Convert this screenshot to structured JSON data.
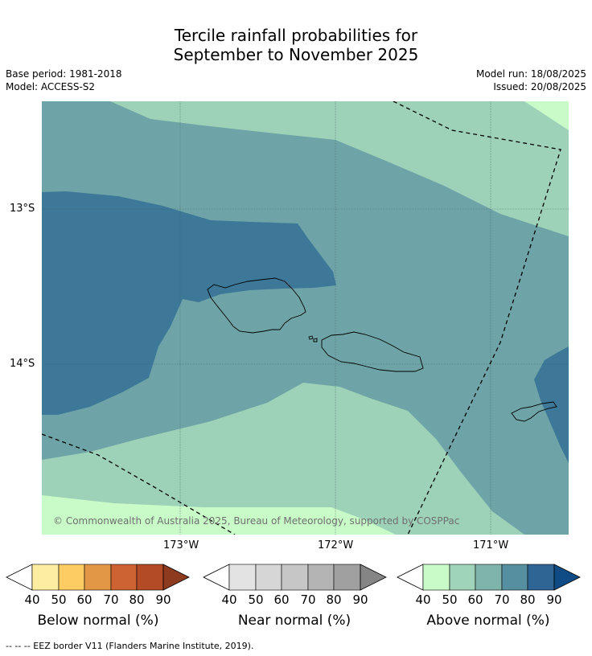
{
  "title_line1": "Tercile rainfall probabilities for",
  "title_line2": "September to November 2025",
  "base_period": "Base period: 1981-2018",
  "model": "Model: ACCESS-S2",
  "model_run": "Model run: 18/08/2025",
  "issued": "Issued: 20/08/2025",
  "lat_labels": [
    "13°S",
    "14°S"
  ],
  "lon_labels": [
    "173°W",
    "172°W",
    "171°W"
  ],
  "copyright": "© Commonwealth of Australia 2025, Bureau of Meteorology, supported by COSPPac",
  "colorbars": [
    {
      "title": "Below normal (%)",
      "ticks": [
        "40",
        "50",
        "60",
        "70",
        "80",
        "90"
      ],
      "colors": [
        "#fdeda0",
        "#fdcc63",
        "#e19745",
        "#cd6232",
        "#b24b26",
        "#8e3a1e"
      ]
    },
    {
      "title": "Near normal (%)",
      "ticks": [
        "40",
        "50",
        "60",
        "70",
        "80",
        "90"
      ],
      "colors": [
        "#e3e3e3",
        "#d6d6d6",
        "#c6c6c6",
        "#b4b4b4",
        "#a0a0a0",
        "#858585"
      ]
    },
    {
      "title": "Above normal (%)",
      "ticks": [
        "40",
        "50",
        "60",
        "70",
        "80",
        "90"
      ],
      "colors": [
        "#c8fbc8",
        "#a0d4ba",
        "#7fb4ab",
        "#568f9f",
        "#2f6594",
        "#0f4c85"
      ]
    }
  ],
  "map_colors": {
    "above_40_50": "#c8fbc8",
    "above_50_60": "#9dd2b8",
    "above_60_70": "#6ea4a7",
    "above_70_80": "#3d7898"
  },
  "legend_note": "--  --  -- EEZ border V11 (Flanders Marine Institute, 2019)."
}
